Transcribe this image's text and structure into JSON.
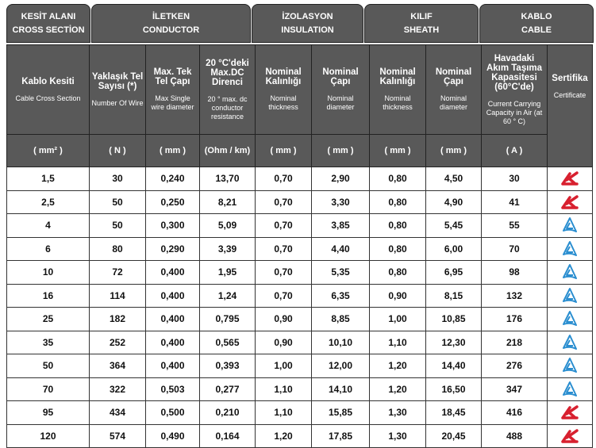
{
  "groups": [
    {
      "line1": "KESİT ALANI",
      "line2": "CROSS SECTİON"
    },
    {
      "line1": "İLETKEN",
      "line2": "CONDUCTOR"
    },
    {
      "line1": "İZOLASYON",
      "line2": "INSULATION"
    },
    {
      "line1": "KILIF",
      "line2": "SHEATH"
    },
    {
      "line1": "KABLO",
      "line2": "CABLE"
    }
  ],
  "columns": [
    {
      "title": "Kablo Kesiti",
      "sub": "Cable Cross Section",
      "unit": "( mm² )"
    },
    {
      "title": "Yaklaşık Tel Sayısı (*)",
      "sub": "Number Of Wire",
      "unit": "( N )"
    },
    {
      "title": "Max. Tek Tel Çapı",
      "sub": "Max Single wire diameter",
      "unit": "( mm )"
    },
    {
      "title": "20 °C'deki Max.DC Direnci",
      "sub": "20 ° max. dc conductor resistance",
      "unit": "(Ohm / km)"
    },
    {
      "title": "Nominal Kalınlığı",
      "sub": "Nominal thickness",
      "unit": "( mm )"
    },
    {
      "title": "Nominal Çapı",
      "sub": "Nominal diameter",
      "unit": "( mm )"
    },
    {
      "title": "Nominal Kalınlığı",
      "sub": "Nominal thickness",
      "unit": "( mm )"
    },
    {
      "title": "Nominal Çapı",
      "sub": "Nominal diameter",
      "unit": "( mm )"
    },
    {
      "title": "Havadaki Akım Taşıma Kapasitesi (60°C'de)",
      "sub": "Current Carrying Capacity in Air (at 60 ° C)",
      "unit": "( A )"
    },
    {
      "title": "Sertifika",
      "sub": "Certificate",
      "unit": ""
    }
  ],
  "colors": {
    "header_bg": "#595959",
    "cert_red": "#d8202f",
    "cert_blue": "#2a8ed0"
  },
  "rows": [
    {
      "cells": [
        "1,5",
        "30",
        "0,240",
        "13,70",
        "0,70",
        "2,90",
        "0,80",
        "4,50",
        "30"
      ],
      "cert": "red-cert-icon"
    },
    {
      "cells": [
        "2,5",
        "50",
        "0,250",
        "8,21",
        "0,70",
        "3,30",
        "0,80",
        "4,90",
        "41"
      ],
      "cert": "red-cert-icon"
    },
    {
      "cells": [
        "4",
        "50",
        "0,300",
        "5,09",
        "0,70",
        "3,85",
        "0,80",
        "5,45",
        "55"
      ],
      "cert": "blue-triangle-cert-icon"
    },
    {
      "cells": [
        "6",
        "80",
        "0,290",
        "3,39",
        "0,70",
        "4,40",
        "0,80",
        "6,00",
        "70"
      ],
      "cert": "blue-triangle-cert-icon"
    },
    {
      "cells": [
        "10",
        "72",
        "0,400",
        "1,95",
        "0,70",
        "5,35",
        "0,80",
        "6,95",
        "98"
      ],
      "cert": "blue-triangle-cert-icon"
    },
    {
      "cells": [
        "16",
        "114",
        "0,400",
        "1,24",
        "0,70",
        "6,35",
        "0,90",
        "8,15",
        "132"
      ],
      "cert": "blue-triangle-cert-icon"
    },
    {
      "cells": [
        "25",
        "182",
        "0,400",
        "0,795",
        "0,90",
        "8,85",
        "1,00",
        "10,85",
        "176"
      ],
      "cert": "blue-triangle-cert-icon"
    },
    {
      "cells": [
        "35",
        "252",
        "0,400",
        "0,565",
        "0,90",
        "10,10",
        "1,10",
        "12,30",
        "218"
      ],
      "cert": "blue-triangle-cert-icon"
    },
    {
      "cells": [
        "50",
        "364",
        "0,400",
        "0,393",
        "1,00",
        "12,00",
        "1,20",
        "14,40",
        "276"
      ],
      "cert": "blue-triangle-cert-icon"
    },
    {
      "cells": [
        "70",
        "322",
        "0,503",
        "0,277",
        "1,10",
        "14,10",
        "1,20",
        "16,50",
        "347"
      ],
      "cert": "blue-triangle-cert-icon"
    },
    {
      "cells": [
        "95",
        "434",
        "0,500",
        "0,210",
        "1,10",
        "15,85",
        "1,30",
        "18,45",
        "416"
      ],
      "cert": "red-cert-icon"
    },
    {
      "cells": [
        "120",
        "574",
        "0,490",
        "0,164",
        "1,20",
        "17,85",
        "1,30",
        "20,45",
        "488"
      ],
      "cert": "red-cert-icon"
    }
  ]
}
